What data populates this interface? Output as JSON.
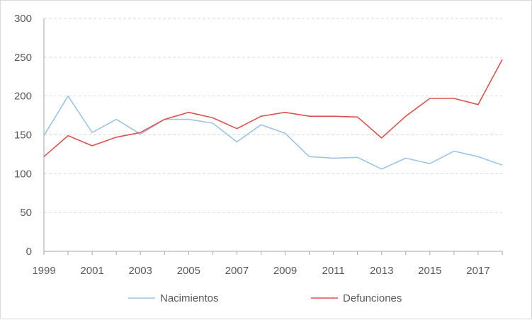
{
  "chart_data": {
    "type": "line",
    "title": "",
    "xlabel": "",
    "ylabel": "",
    "x": [
      1999,
      2000,
      2001,
      2002,
      2003,
      2004,
      2005,
      2006,
      2007,
      2008,
      2009,
      2010,
      2011,
      2012,
      2013,
      2014,
      2015,
      2016,
      2017,
      2018
    ],
    "xticks": [
      "1999",
      "2001",
      "2003",
      "2005",
      "2007",
      "2009",
      "2011",
      "2013",
      "2015",
      "2017"
    ],
    "yticks": [
      "0",
      "50",
      "100",
      "150",
      "200",
      "250",
      "300"
    ],
    "ylim": [
      0,
      300
    ],
    "grid": "horizontal dashed",
    "legend": "bottom",
    "series": [
      {
        "name": "Nacimientos",
        "color": "#9dc3e6",
        "values": [
          149,
          200,
          153,
          170,
          151,
          170,
          170,
          165,
          141,
          163,
          152,
          122,
          120,
          121,
          106,
          120,
          113,
          129,
          122,
          111
        ]
      },
      {
        "name": "Defunciones",
        "color": "#d9534f",
        "values": [
          122,
          149,
          136,
          147,
          153,
          170,
          179,
          172,
          158,
          174,
          179,
          174,
          174,
          173,
          146,
          174,
          197,
          197,
          189,
          247
        ]
      }
    ]
  }
}
